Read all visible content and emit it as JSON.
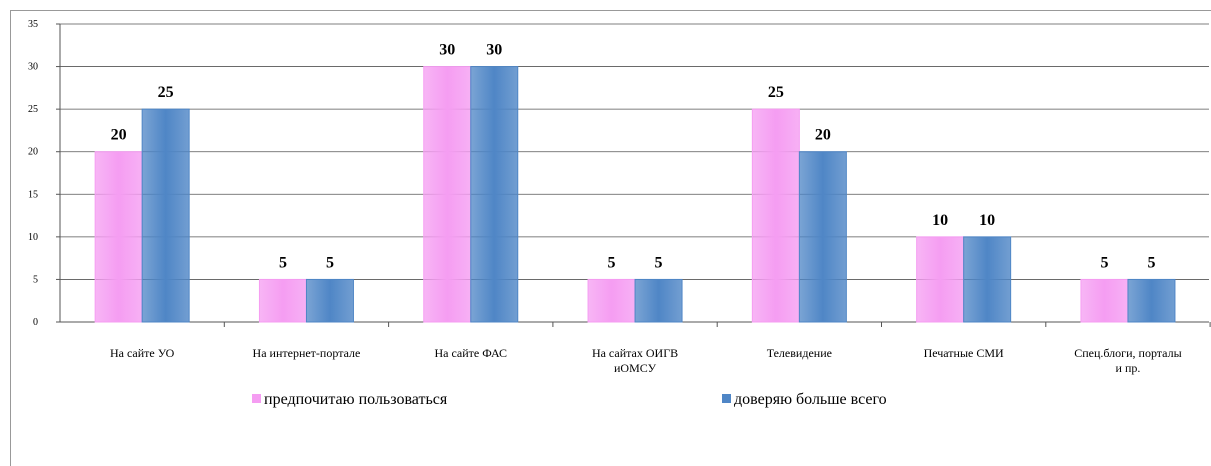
{
  "chart_data": {
    "type": "bar",
    "categories": [
      "На сайте УО",
      "На интернет-портале",
      "На сайте ФАС",
      "На сайтах ОИГВ\nиОМСУ",
      "Телевидение",
      "Печатные СМИ",
      "Спец.блоги, порталы\nи пр."
    ],
    "series": [
      {
        "name": "предпочитаю пользоваться",
        "color": "#f59df2",
        "values": [
          20,
          5,
          30,
          5,
          25,
          10,
          5
        ]
      },
      {
        "name": "доверяю больше всего",
        "color": "#4f86c6",
        "values": [
          25,
          5,
          30,
          5,
          20,
          10,
          5
        ]
      }
    ],
    "ylim": [
      0,
      35
    ],
    "yticks": [
      0,
      5,
      10,
      15,
      20,
      25,
      30,
      35
    ],
    "grid": true
  }
}
